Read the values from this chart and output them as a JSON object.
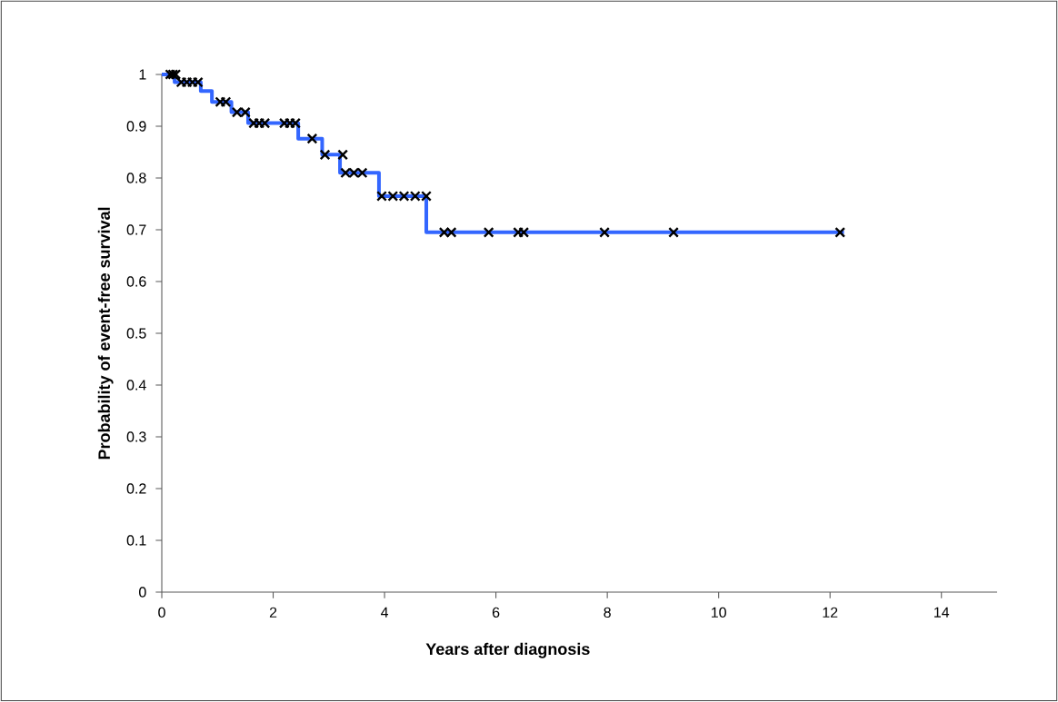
{
  "chart_data": {
    "type": "step",
    "xlabel": "Years after diagnosis",
    "ylabel": "Probability of event-free survival",
    "xlim": [
      0,
      15
    ],
    "ylim": [
      0,
      1
    ],
    "xticks": [
      0,
      2,
      4,
      6,
      8,
      10,
      12,
      14
    ],
    "yticks": [
      0,
      0.1,
      0.2,
      0.3,
      0.4,
      0.5,
      0.6,
      0.7,
      0.8,
      0.9,
      1
    ],
    "grid": false,
    "series": [
      {
        "color": "#3366ff",
        "marker": "none",
        "x": [
          0,
          0.23,
          0.7,
          0.9,
          1.25,
          1.55,
          2.45,
          2.88,
          3.2,
          3.9,
          4.75,
          12.25
        ],
        "values": [
          1,
          0.985,
          0.968,
          0.947,
          0.927,
          0.906,
          0.876,
          0.845,
          0.81,
          0.765,
          0.695,
          0.695
        ]
      },
      {
        "type": "scatter",
        "color": "#000000",
        "marker": "cross",
        "x": [
          0.15,
          0.2,
          0.25,
          0.35,
          0.45,
          0.55,
          0.65,
          1.05,
          1.15,
          1.35,
          1.5,
          1.65,
          1.75,
          1.85,
          2.2,
          2.3,
          2.4,
          2.7,
          2.93,
          3.25,
          3.3,
          3.45,
          3.6,
          3.95,
          4.15,
          4.35,
          4.55,
          4.75,
          5.07,
          5.2,
          5.87,
          6.4,
          6.5,
          7.95,
          9.19,
          12.18
        ],
        "values": [
          1,
          1,
          1,
          0.985,
          0.985,
          0.985,
          0.985,
          0.947,
          0.947,
          0.927,
          0.927,
          0.906,
          0.906,
          0.906,
          0.906,
          0.906,
          0.906,
          0.876,
          0.845,
          0.845,
          0.81,
          0.81,
          0.81,
          0.765,
          0.765,
          0.765,
          0.765,
          0.765,
          0.695,
          0.695,
          0.695,
          0.695,
          0.695,
          0.695,
          0.695,
          0.695
        ]
      }
    ]
  }
}
